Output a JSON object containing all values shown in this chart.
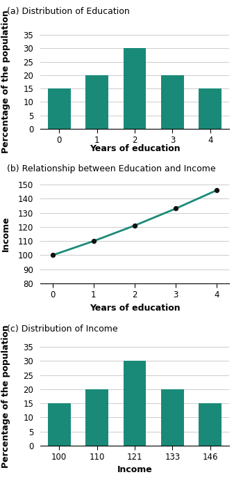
{
  "panel_a": {
    "title": "(a) Distribution of Education",
    "ylabel": "Percentage of the population",
    "xlabel": "Years of education",
    "categories": [
      0,
      1,
      2,
      3,
      4
    ],
    "values": [
      15,
      20,
      30,
      20,
      15
    ],
    "bar_color": "#1a8a78",
    "ylim": [
      0,
      35
    ],
    "yticks": [
      0,
      5,
      10,
      15,
      20,
      25,
      30,
      35
    ]
  },
  "panel_b": {
    "title": "(b) Relationship between Education and Income",
    "ylabel": "Income",
    "xlabel": "Years of education",
    "x": [
      0,
      1,
      2,
      3,
      4
    ],
    "y": [
      100,
      110,
      121,
      133,
      146
    ],
    "line_color": "#1a8a78",
    "marker_color": "#111111",
    "ylim": [
      80,
      150
    ],
    "yticks": [
      80,
      90,
      100,
      110,
      120,
      130,
      140,
      150
    ]
  },
  "panel_c": {
    "title": "(c) Distribution of Income",
    "ylabel": "Percentage of the population",
    "xlabel": "Income",
    "categories": [
      100,
      110,
      121,
      133,
      146
    ],
    "cat_labels": [
      "100",
      "110",
      "121",
      "133",
      "146"
    ],
    "values": [
      15,
      20,
      30,
      20,
      15
    ],
    "bar_color": "#1a8a78",
    "ylim": [
      0,
      35
    ],
    "yticks": [
      0,
      5,
      10,
      15,
      20,
      25,
      30,
      35
    ]
  },
  "title_fontsize": 9,
  "label_fontsize": 9,
  "tick_fontsize": 8.5,
  "ylabel_fontsize": 9,
  "title_fontweight": "normal",
  "ylabel_fontweight": "bold",
  "xlabel_fontweight": "bold",
  "bg_color": "#ffffff",
  "grid_color": "#cccccc"
}
